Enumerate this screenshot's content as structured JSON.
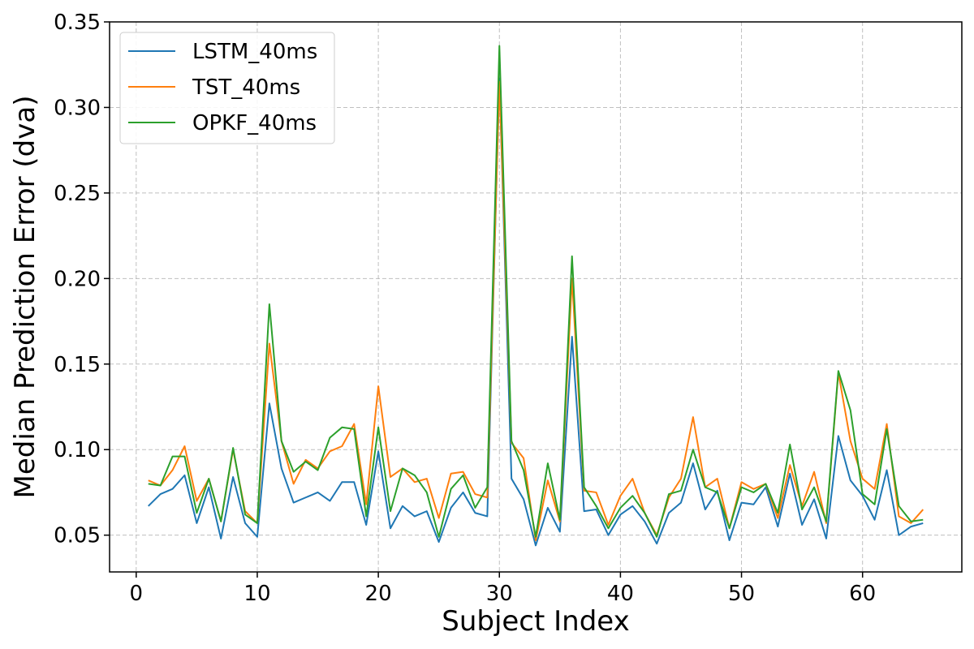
{
  "chart_data": {
    "type": "line",
    "title": "",
    "xlabel": "Subject Index",
    "ylabel": "Median Prediction Error (dva)",
    "xlim": [
      -2.2,
      68.2
    ],
    "ylim": [
      0.0285,
      0.35
    ],
    "xticks": [
      0,
      10,
      20,
      30,
      40,
      50,
      60
    ],
    "yticks": [
      0.05,
      0.1,
      0.15,
      0.2,
      0.25,
      0.3,
      0.35
    ],
    "xtick_labels": [
      "0",
      "10",
      "20",
      "30",
      "40",
      "50",
      "60"
    ],
    "ytick_labels": [
      "0.05",
      "0.10",
      "0.15",
      "0.20",
      "0.25",
      "0.30",
      "0.35"
    ],
    "grid": true,
    "legend_position": "top-left",
    "x": [
      1,
      2,
      3,
      4,
      5,
      6,
      7,
      8,
      9,
      10,
      11,
      12,
      13,
      14,
      15,
      16,
      17,
      18,
      19,
      20,
      21,
      22,
      23,
      24,
      25,
      26,
      27,
      28,
      29,
      30,
      31,
      32,
      33,
      34,
      35,
      36,
      37,
      38,
      39,
      40,
      41,
      42,
      43,
      44,
      45,
      46,
      47,
      48,
      49,
      50,
      51,
      52,
      53,
      54,
      55,
      56,
      57,
      58,
      59,
      60,
      61,
      62,
      63,
      64,
      65
    ],
    "series": [
      {
        "name": "LSTM_40ms",
        "color": "#1f77b4",
        "values": [
          0.067,
          0.074,
          0.077,
          0.085,
          0.057,
          0.078,
          0.048,
          0.084,
          0.057,
          0.049,
          0.127,
          0.089,
          0.069,
          0.072,
          0.075,
          0.07,
          0.081,
          0.081,
          0.056,
          0.099,
          0.054,
          0.067,
          0.061,
          0.064,
          0.046,
          0.066,
          0.075,
          0.063,
          0.061,
          0.317,
          0.083,
          0.071,
          0.044,
          0.066,
          0.052,
          0.166,
          0.064,
          0.065,
          0.05,
          0.062,
          0.067,
          0.058,
          0.045,
          0.063,
          0.069,
          0.092,
          0.065,
          0.076,
          0.047,
          0.069,
          0.068,
          0.078,
          0.055,
          0.086,
          0.056,
          0.071,
          0.048,
          0.108,
          0.082,
          0.073,
          0.059,
          0.088,
          0.05,
          0.055,
          0.057
        ]
      },
      {
        "name": "TST_40ms",
        "color": "#ff7f0e",
        "values": [
          0.082,
          0.079,
          0.088,
          0.102,
          0.07,
          0.083,
          0.058,
          0.1,
          0.064,
          0.057,
          0.162,
          0.105,
          0.08,
          0.094,
          0.089,
          0.099,
          0.102,
          0.115,
          0.068,
          0.137,
          0.084,
          0.089,
          0.081,
          0.083,
          0.06,
          0.086,
          0.087,
          0.074,
          0.072,
          0.315,
          0.104,
          0.095,
          0.047,
          0.082,
          0.058,
          0.2,
          0.076,
          0.075,
          0.056,
          0.073,
          0.083,
          0.063,
          0.05,
          0.072,
          0.083,
          0.119,
          0.078,
          0.083,
          0.054,
          0.081,
          0.077,
          0.08,
          0.06,
          0.091,
          0.067,
          0.087,
          0.057,
          0.145,
          0.105,
          0.083,
          0.077,
          0.115,
          0.061,
          0.057,
          0.065
        ]
      },
      {
        "name": "OPKF_40ms",
        "color": "#2ca02c",
        "values": [
          0.08,
          0.079,
          0.096,
          0.096,
          0.063,
          0.083,
          0.058,
          0.101,
          0.062,
          0.057,
          0.185,
          0.105,
          0.087,
          0.093,
          0.088,
          0.107,
          0.113,
          0.112,
          0.061,
          0.113,
          0.064,
          0.089,
          0.085,
          0.075,
          0.049,
          0.077,
          0.085,
          0.066,
          0.078,
          0.336,
          0.105,
          0.088,
          0.049,
          0.092,
          0.059,
          0.213,
          0.078,
          0.067,
          0.054,
          0.066,
          0.073,
          0.063,
          0.049,
          0.074,
          0.076,
          0.1,
          0.078,
          0.075,
          0.054,
          0.078,
          0.075,
          0.08,
          0.063,
          0.103,
          0.065,
          0.078,
          0.058,
          0.146,
          0.123,
          0.074,
          0.068,
          0.112,
          0.067,
          0.058,
          0.059
        ]
      }
    ]
  }
}
